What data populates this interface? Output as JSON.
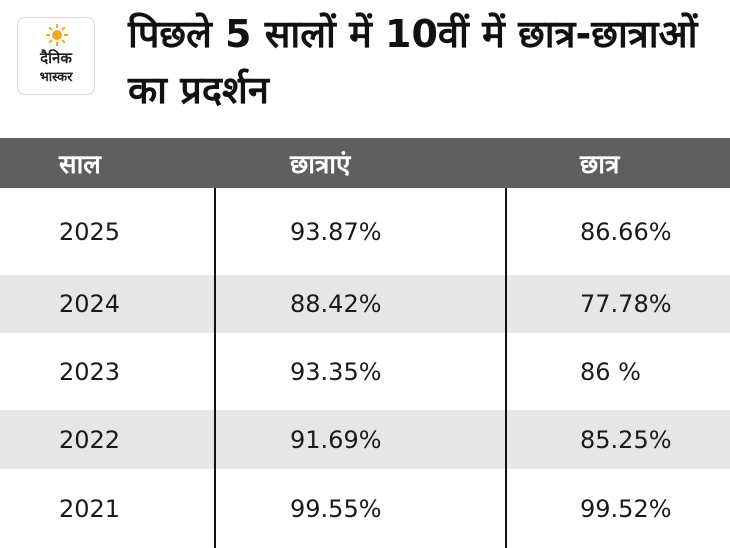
{
  "logo": {
    "line1": "दैनिक",
    "line2": "भास्कर",
    "sun_color": "#f5a623"
  },
  "title": "पिछले 5 सालों में 10वीं में छात्र-छात्राओं का प्रदर्शन",
  "table": {
    "header_bg": "#5f5f5f",
    "alt_row_bg": "#e6e6e6",
    "columns": [
      "साल",
      "छात्राएं",
      "छात्र"
    ],
    "rows": [
      {
        "year": "2025",
        "girls": "93.87%",
        "boys": "86.66%"
      },
      {
        "year": "2024",
        "girls": "88.42%",
        "boys": "77.78%"
      },
      {
        "year": "2023",
        "girls": "93.35%",
        "boys": "86 %"
      },
      {
        "year": "2022",
        "girls": "91.69%",
        "boys": "85.25%"
      },
      {
        "year": "2021",
        "girls": "99.55%",
        "boys": "99.52%"
      }
    ]
  }
}
